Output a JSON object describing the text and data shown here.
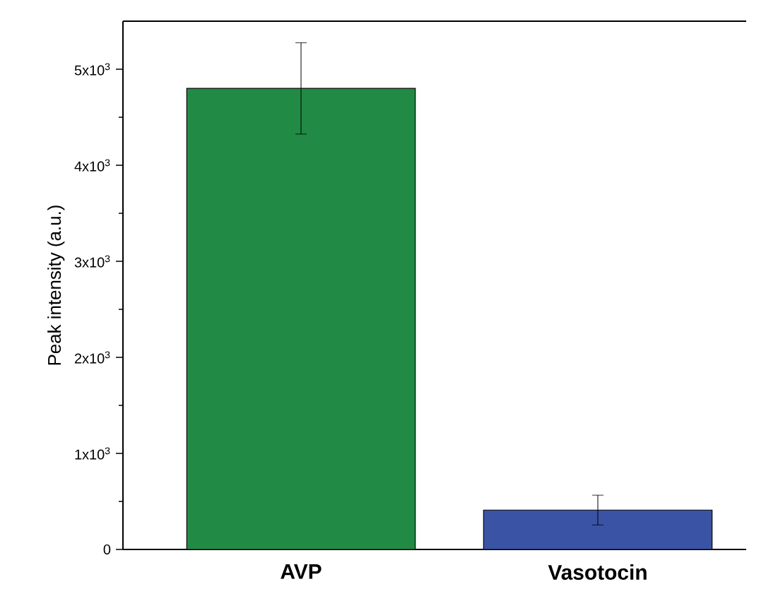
{
  "chart_data": {
    "type": "bar",
    "ylabel": "Peak intensity (a.u.)",
    "categories": [
      "AVP",
      "Vasotocin"
    ],
    "values": [
      4800,
      410
    ],
    "errors": [
      475,
      155
    ],
    "colors": [
      "#218a45",
      "#3a53a4"
    ],
    "ylim": [
      0,
      5500
    ],
    "yticks": [
      0,
      {
        "value": 1000,
        "label": "1x10$^{3}$"
      },
      {
        "value": 2000,
        "label": "2x10$^{3}$"
      },
      {
        "value": 3000,
        "label": "3x10$^{3}$"
      },
      {
        "value": 4000,
        "label": "4x10$^{3}$"
      },
      {
        "value": 5000,
        "label": "5x10$^{3}$"
      }
    ]
  }
}
